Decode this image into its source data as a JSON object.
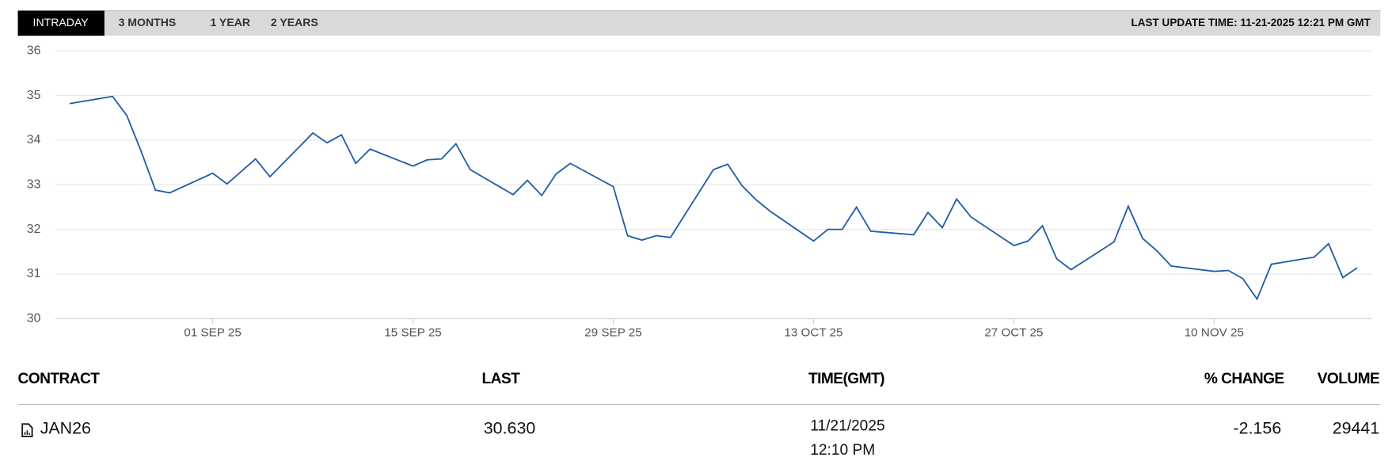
{
  "tabs": [
    "INTRADAY",
    "3 MONTHS",
    "1 YEAR",
    "2 YEARS"
  ],
  "last_update": "LAST UPDATE TIME: 11-21-2025 12:21 PM GMT",
  "chart_data": {
    "type": "line",
    "x": [
      "2025-08-22",
      "2025-08-25",
      "2025-08-26",
      "2025-08-27",
      "2025-08-28",
      "2025-08-29",
      "2025-09-01",
      "2025-09-02",
      "2025-09-04",
      "2025-09-05",
      "2025-09-08",
      "2025-09-09",
      "2025-09-10",
      "2025-09-11",
      "2025-09-12",
      "2025-09-15",
      "2025-09-16",
      "2025-09-17",
      "2025-09-18",
      "2025-09-19",
      "2025-09-22",
      "2025-09-23",
      "2025-09-24",
      "2025-09-25",
      "2025-09-26",
      "2025-09-29",
      "2025-09-30",
      "2025-10-01",
      "2025-10-02",
      "2025-10-03",
      "2025-10-06",
      "2025-10-07",
      "2025-10-08",
      "2025-10-09",
      "2025-10-10",
      "2025-10-13",
      "2025-10-14",
      "2025-10-15",
      "2025-10-16",
      "2025-10-17",
      "2025-10-20",
      "2025-10-21",
      "2025-10-22",
      "2025-10-23",
      "2025-10-24",
      "2025-10-27",
      "2025-10-28",
      "2025-10-29",
      "2025-10-30",
      "2025-10-31",
      "2025-11-03",
      "2025-11-04",
      "2025-11-05",
      "2025-11-06",
      "2025-11-07",
      "2025-11-10",
      "2025-11-11",
      "2025-11-12",
      "2025-11-13",
      "2025-11-14",
      "2025-11-17",
      "2025-11-18",
      "2025-11-19",
      "2025-11-20"
    ],
    "series": [
      {
        "color": "#1f5ba6",
        "values": [
          34.82,
          34.98,
          34.55,
          33.75,
          32.88,
          32.82,
          33.26,
          33.02,
          33.58,
          33.18,
          34.16,
          33.94,
          34.12,
          33.48,
          33.8,
          33.42,
          33.56,
          33.58,
          33.92,
          33.34,
          32.78,
          33.1,
          32.76,
          33.24,
          33.48,
          32.96,
          31.86,
          31.76,
          31.86,
          31.82,
          33.34,
          33.46,
          32.98,
          32.66,
          32.4,
          31.74,
          32.0,
          32.0,
          32.5,
          31.96,
          31.88,
          32.38,
          32.04,
          32.68,
          32.28,
          31.64,
          31.74,
          32.08,
          31.34,
          31.1,
          31.72,
          32.52,
          31.8,
          31.52,
          31.18,
          31.06,
          31.08,
          30.9,
          30.44,
          31.22,
          31.38,
          31.68,
          30.92,
          31.14
        ]
      }
    ],
    "xlim": [
      "2025-08-21",
      "2025-11-21"
    ],
    "xticks": [
      {
        "value": "2025-09-01",
        "label": "01 SEP 25"
      },
      {
        "value": "2025-09-15",
        "label": "15 SEP 25"
      },
      {
        "value": "2025-09-29",
        "label": "29 SEP 25"
      },
      {
        "value": "2025-10-13",
        "label": "13 OCT 25"
      },
      {
        "value": "2025-10-27",
        "label": "27 OCT 25"
      },
      {
        "value": "2025-11-10",
        "label": "10 NOV 25"
      }
    ],
    "ylim": [
      30,
      36
    ],
    "yticks": [
      30,
      31,
      32,
      33,
      34,
      35,
      36
    ],
    "grid": true
  },
  "table": {
    "headers": [
      "CONTRACT",
      "LAST",
      "TIME(GMT)",
      "% CHANGE",
      "VOLUME"
    ],
    "rows": [
      [
        "JAN26",
        "30.630",
        [
          "11/21/2025",
          "12:10 PM"
        ],
        "-2.156",
        "29441"
      ]
    ]
  }
}
